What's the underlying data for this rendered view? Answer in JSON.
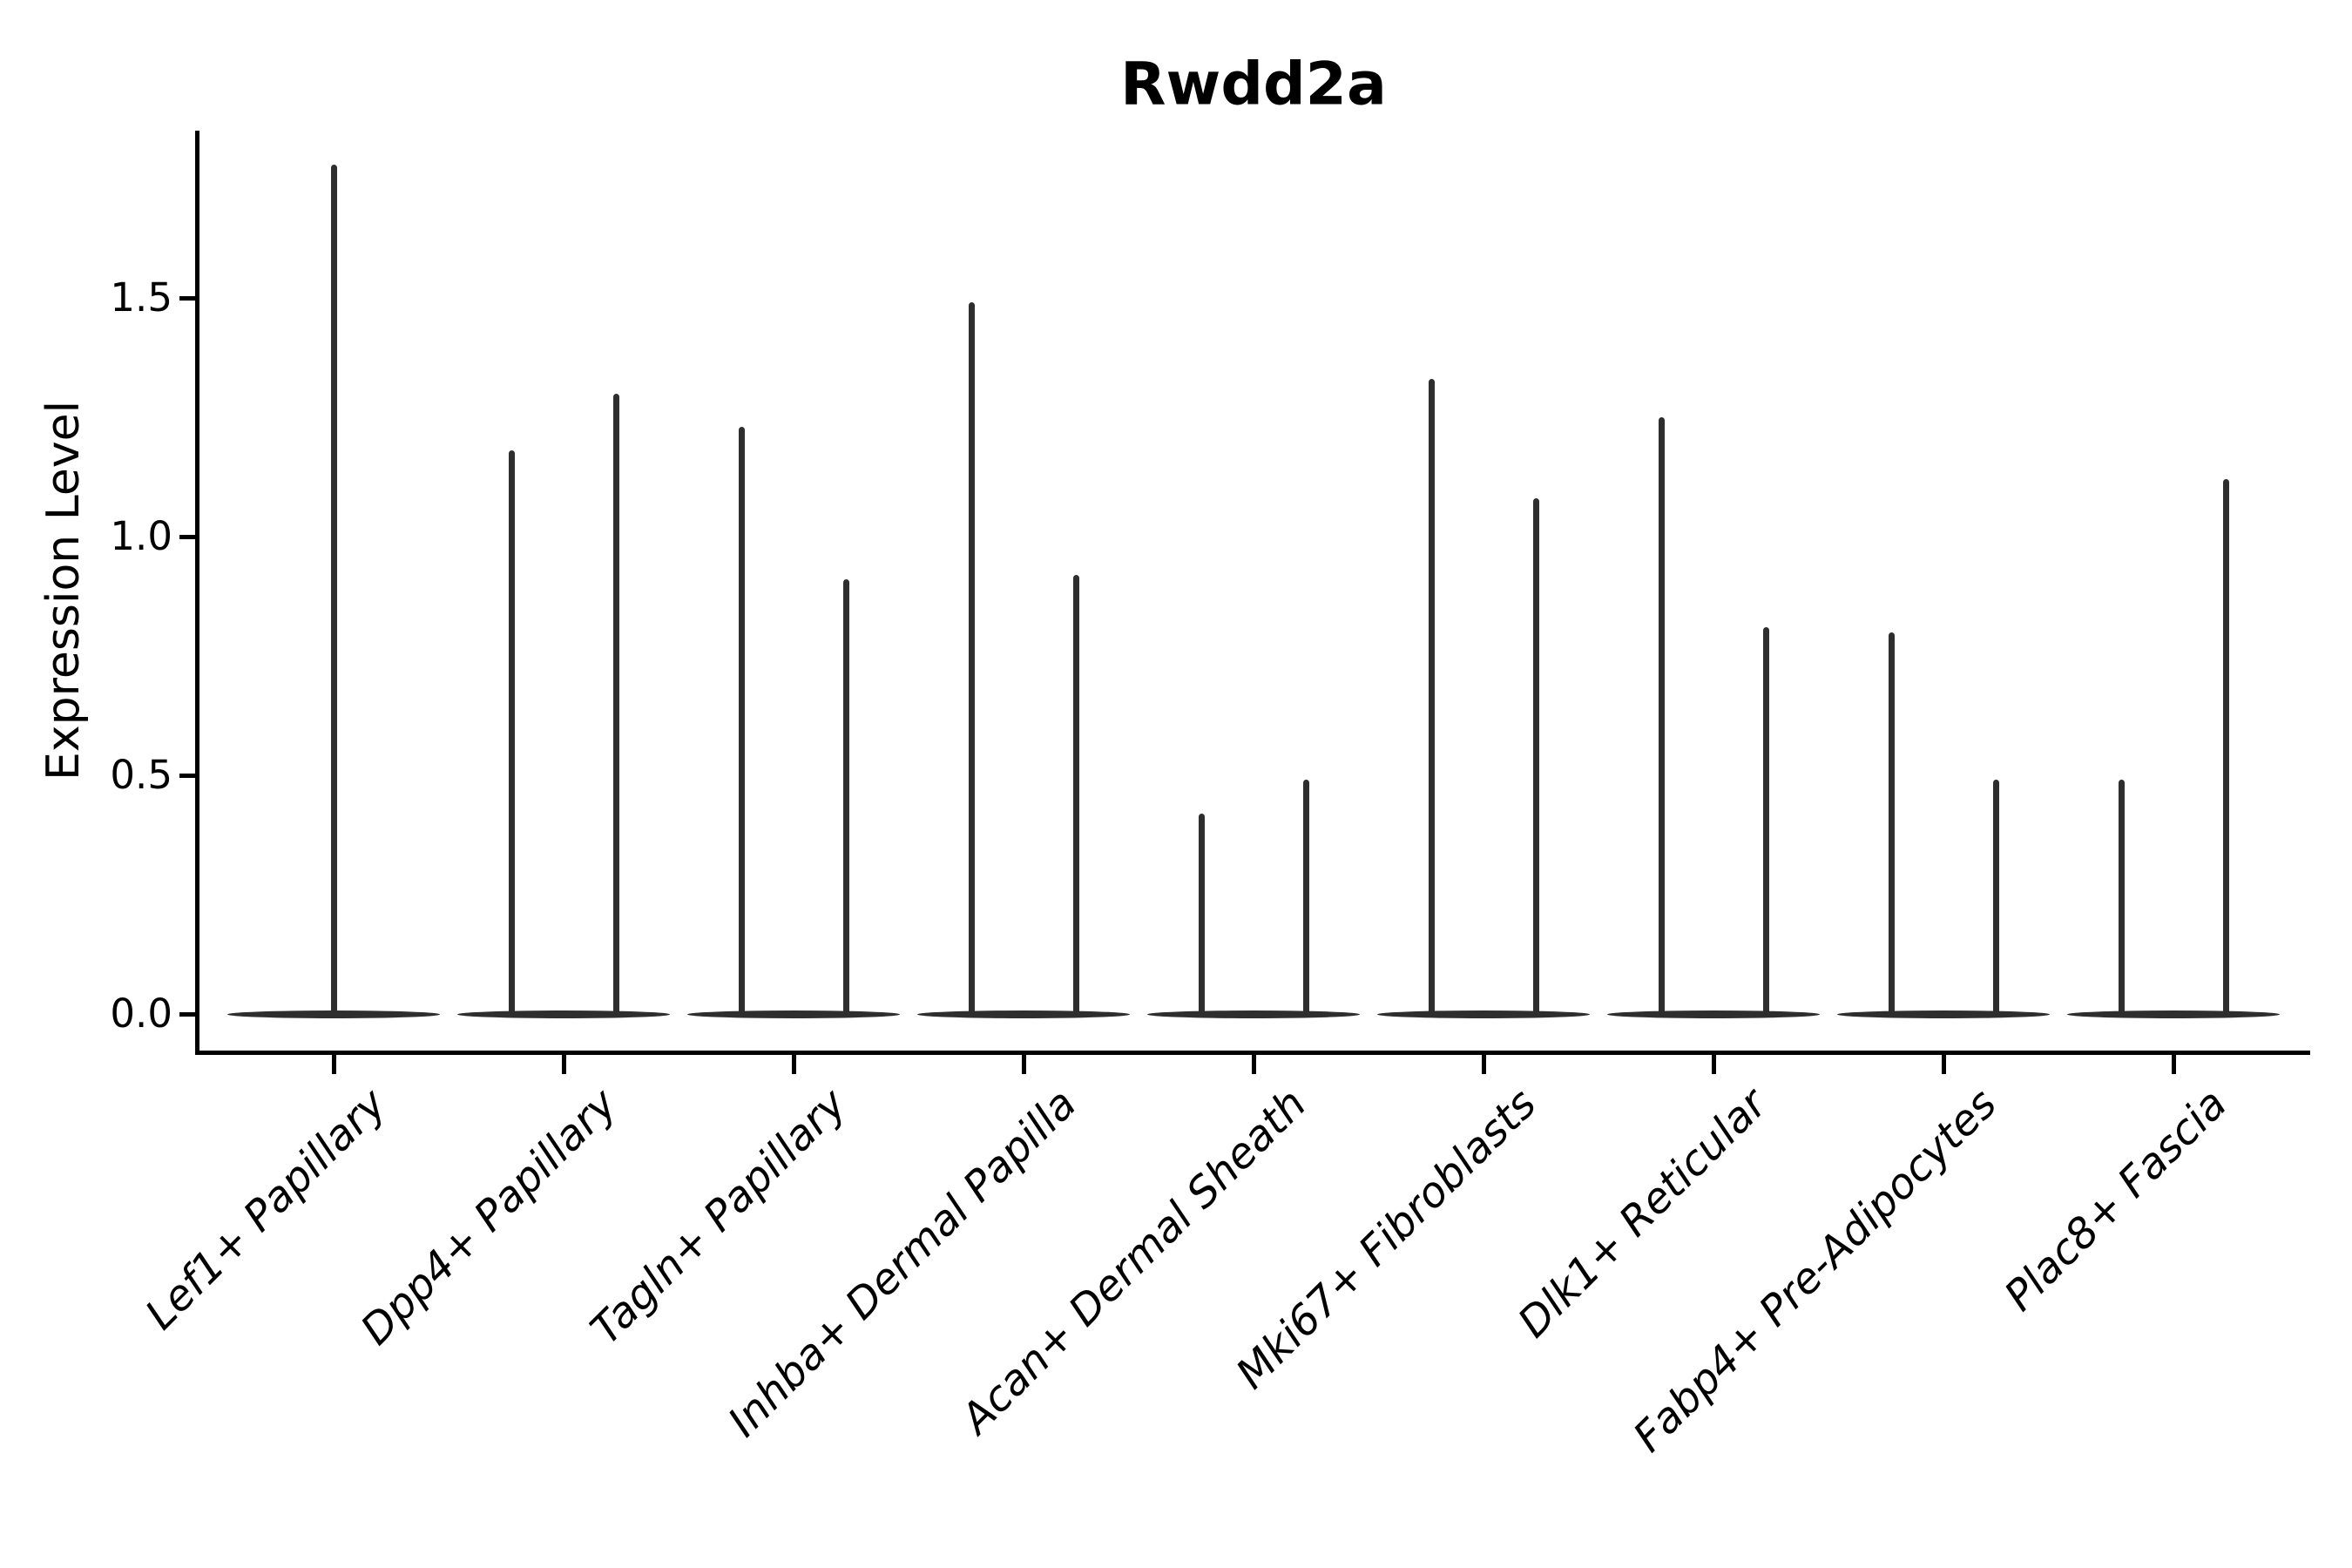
{
  "title": "Rwdd2a",
  "colors": {
    "violin": "#2e2e2e",
    "axis": "#000000",
    "text": "#000000",
    "background": "#ffffff"
  },
  "y_axis": {
    "label": "Expression Level",
    "ticks": [
      {
        "label": "0.0",
        "value": 0.0
      },
      {
        "label": "0.5",
        "value": 0.5
      },
      {
        "label": "1.0",
        "value": 1.0
      },
      {
        "label": "1.5",
        "value": 1.5
      }
    ],
    "ylim": [
      0,
      1.85
    ]
  },
  "chart_data": {
    "type": "violin",
    "title": "Rwdd2a",
    "xlabel": "",
    "ylabel": "Expression Level",
    "ylim": [
      0,
      1.85
    ],
    "grid": false,
    "legend": "none",
    "description": "Single-cell expression violin plot; each category shows violins collapsed to a wide flat base at 0 expression with thin spikes reaching the maximum expression value.",
    "categories": [
      "Lef1+ Papillary",
      "Dpp4+ Papillary",
      "Tagln+ Papillary",
      "Inhba+ Dermal Papilla",
      "Acan+ Dermal Sheath",
      "Mki67+ Fibroblasts",
      "Dlk1+ Reticular",
      "Fabp4+ Pre-Adipocytes",
      "Plac8+ Fascia"
    ],
    "series": [
      {
        "category": "Lef1+ Papillary",
        "spikes": [
          {
            "offset": 0,
            "max_expression": 1.78
          }
        ]
      },
      {
        "category": "Dpp4+ Papillary",
        "spikes": [
          {
            "offset": -60,
            "max_expression": 1.18
          },
          {
            "offset": 60,
            "max_expression": 1.3
          }
        ]
      },
      {
        "category": "Tagln+ Papillary",
        "spikes": [
          {
            "offset": -60,
            "max_expression": 1.23
          },
          {
            "offset": 60,
            "max_expression": 0.91
          }
        ]
      },
      {
        "category": "Inhba+ Dermal Papilla",
        "spikes": [
          {
            "offset": -60,
            "max_expression": 1.49
          },
          {
            "offset": 60,
            "max_expression": 0.92
          }
        ]
      },
      {
        "category": "Acan+ Dermal Sheath",
        "spikes": [
          {
            "offset": -60,
            "max_expression": 0.42
          },
          {
            "offset": 60,
            "max_expression": 0.49
          }
        ]
      },
      {
        "category": "Mki67+ Fibroblasts",
        "spikes": [
          {
            "offset": -60,
            "max_expression": 1.33
          },
          {
            "offset": 60,
            "max_expression": 1.08
          }
        ]
      },
      {
        "category": "Dlk1+ Reticular",
        "spikes": [
          {
            "offset": -60,
            "max_expression": 1.25
          },
          {
            "offset": 60,
            "max_expression": 0.81
          }
        ]
      },
      {
        "category": "Fabp4+ Pre-Adipocytes",
        "spikes": [
          {
            "offset": -60,
            "max_expression": 0.8
          },
          {
            "offset": 60,
            "max_expression": 0.49
          }
        ]
      },
      {
        "category": "Plac8+ Fascia",
        "spikes": [
          {
            "offset": -60,
            "max_expression": 0.49
          },
          {
            "offset": 60,
            "max_expression": 1.12
          }
        ]
      }
    ],
    "base_expression": 0.0
  }
}
